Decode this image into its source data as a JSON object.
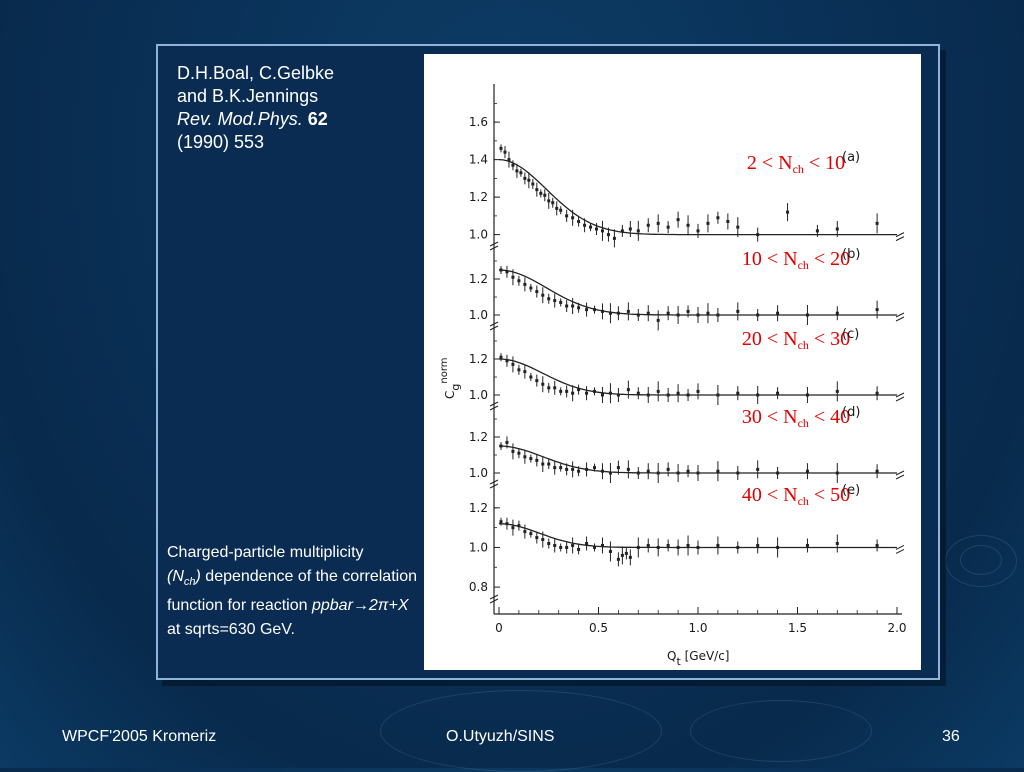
{
  "slide": {
    "reference": {
      "line1": "D.H.Boal, C.Gelbke",
      "line2": "and B.K.Jennings",
      "journal": "Rev. Mod.Phys.",
      "volume": "62",
      "line4": "(1990) 553"
    },
    "caption": {
      "part1": "Charged-particle multiplicity",
      "nch_open": "(N",
      "nch_sub": "ch",
      "nch_close": ")",
      "part2": " dependence of the correlation function for reaction ",
      "reaction": "ppbar→2π+X",
      "part3": " at sqrts=630 GeV."
    },
    "footer": {
      "left": "WPCF'2005 Kromeriz",
      "center": "O.Utyuzh/SINS",
      "right": "36"
    }
  },
  "chart_data": {
    "type": "scatter",
    "xlabel": "Q",
    "xlabel_sub": "t",
    "xlabel_unit": "[GeV/c]",
    "ylabel": "C",
    "ylabel_sub": "g",
    "ylabel_sup": "norm",
    "xlim": [
      0,
      2.0
    ],
    "x_ticks": [
      "0",
      "0.5",
      "1.0",
      "1.5",
      "2.0"
    ],
    "x_tick_values": [
      0,
      0.5,
      1.0,
      1.5,
      2.0
    ],
    "panels": [
      {
        "letter": "(a)",
        "range": {
          "low": "2",
          "high": "10",
          "var": "N",
          "sub": "ch"
        },
        "ylim": [
          0.95,
          1.75
        ],
        "y_ticks": [
          "1.0",
          "1.2",
          "1.4",
          "1.6"
        ],
        "y_tick_values": [
          1.0,
          1.2,
          1.4,
          1.6
        ],
        "fit": {
          "amp": 0.4,
          "width": 0.26
        },
        "points": [
          [
            0.01,
            1.46
          ],
          [
            0.03,
            1.44
          ],
          [
            0.05,
            1.4
          ],
          [
            0.07,
            1.37
          ],
          [
            0.09,
            1.34
          ],
          [
            0.11,
            1.33
          ],
          [
            0.13,
            1.3
          ],
          [
            0.15,
            1.29
          ],
          [
            0.17,
            1.27
          ],
          [
            0.19,
            1.24
          ],
          [
            0.21,
            1.22
          ],
          [
            0.23,
            1.21
          ],
          [
            0.25,
            1.18
          ],
          [
            0.27,
            1.17
          ],
          [
            0.29,
            1.14
          ],
          [
            0.31,
            1.13
          ],
          [
            0.34,
            1.1
          ],
          [
            0.37,
            1.09
          ],
          [
            0.4,
            1.07
          ],
          [
            0.43,
            1.05
          ],
          [
            0.46,
            1.04
          ],
          [
            0.49,
            1.03
          ],
          [
            0.52,
            1.02
          ],
          [
            0.55,
            1.0
          ],
          [
            0.58,
            0.98
          ],
          [
            0.62,
            1.02
          ],
          [
            0.66,
            1.03
          ],
          [
            0.7,
            1.02
          ],
          [
            0.75,
            1.05
          ],
          [
            0.8,
            1.06
          ],
          [
            0.85,
            1.04
          ],
          [
            0.9,
            1.08
          ],
          [
            0.95,
            1.05
          ],
          [
            1.0,
            1.02
          ],
          [
            1.05,
            1.06
          ],
          [
            1.1,
            1.09
          ],
          [
            1.15,
            1.07
          ],
          [
            1.2,
            1.04
          ],
          [
            1.3,
            1.0
          ],
          [
            1.45,
            1.12
          ],
          [
            1.6,
            1.02
          ],
          [
            1.7,
            1.03
          ],
          [
            1.9,
            1.06
          ]
        ]
      },
      {
        "letter": "(b)",
        "range": {
          "low": "10",
          "high": "20",
          "var": "N",
          "sub": "ch"
        },
        "ylim": [
          0.95,
          1.35
        ],
        "y_ticks": [
          "1.0",
          "1.2"
        ],
        "y_tick_values": [
          1.0,
          1.2
        ],
        "fit": {
          "amp": 0.25,
          "width": 0.26
        },
        "points": [
          [
            0.01,
            1.25
          ],
          [
            0.04,
            1.24
          ],
          [
            0.07,
            1.21
          ],
          [
            0.1,
            1.19
          ],
          [
            0.13,
            1.17
          ],
          [
            0.16,
            1.15
          ],
          [
            0.19,
            1.13
          ],
          [
            0.22,
            1.11
          ],
          [
            0.25,
            1.09
          ],
          [
            0.28,
            1.08
          ],
          [
            0.31,
            1.07
          ],
          [
            0.34,
            1.05
          ],
          [
            0.37,
            1.05
          ],
          [
            0.4,
            1.04
          ],
          [
            0.44,
            1.03
          ],
          [
            0.48,
            1.03
          ],
          [
            0.52,
            1.02
          ],
          [
            0.56,
            1.01
          ],
          [
            0.6,
            1.01
          ],
          [
            0.65,
            1.02
          ],
          [
            0.7,
            1.0
          ],
          [
            0.75,
            1.01
          ],
          [
            0.8,
            0.97
          ],
          [
            0.85,
            1.01
          ],
          [
            0.9,
            1.0
          ],
          [
            0.95,
            1.02
          ],
          [
            1.0,
            1.0
          ],
          [
            1.05,
            1.01
          ],
          [
            1.1,
            1.0
          ],
          [
            1.2,
            1.02
          ],
          [
            1.3,
            1.0
          ],
          [
            1.4,
            1.01
          ],
          [
            1.55,
            1.0
          ],
          [
            1.7,
            1.01
          ],
          [
            1.9,
            1.03
          ]
        ]
      },
      {
        "letter": "(c)",
        "range": {
          "low": "20",
          "high": "30",
          "var": "N",
          "sub": "ch"
        },
        "ylim": [
          0.95,
          1.35
        ],
        "y_ticks": [
          "1.0",
          "1.2"
        ],
        "y_tick_values": [
          1.0,
          1.2
        ],
        "fit": {
          "amp": 0.2,
          "width": 0.24
        },
        "points": [
          [
            0.01,
            1.21
          ],
          [
            0.04,
            1.19
          ],
          [
            0.07,
            1.17
          ],
          [
            0.1,
            1.14
          ],
          [
            0.13,
            1.13
          ],
          [
            0.16,
            1.1
          ],
          [
            0.19,
            1.08
          ],
          [
            0.22,
            1.06
          ],
          [
            0.25,
            1.04
          ],
          [
            0.28,
            1.04
          ],
          [
            0.31,
            1.02
          ],
          [
            0.34,
            1.02
          ],
          [
            0.37,
            1.01
          ],
          [
            0.4,
            1.03
          ],
          [
            0.44,
            1.01
          ],
          [
            0.48,
            1.02
          ],
          [
            0.52,
            1.0
          ],
          [
            0.56,
            1.01
          ],
          [
            0.6,
            1.0
          ],
          [
            0.65,
            1.03
          ],
          [
            0.7,
            1.01
          ],
          [
            0.75,
            1.0
          ],
          [
            0.8,
            1.02
          ],
          [
            0.85,
            1.0
          ],
          [
            0.9,
            1.01
          ],
          [
            0.95,
            1.0
          ],
          [
            1.0,
            1.02
          ],
          [
            1.1,
            1.0
          ],
          [
            1.2,
            1.01
          ],
          [
            1.3,
            1.0
          ],
          [
            1.4,
            1.01
          ],
          [
            1.55,
            1.0
          ],
          [
            1.7,
            1.02
          ],
          [
            1.9,
            1.01
          ]
        ]
      },
      {
        "letter": "(d)",
        "range": {
          "low": "30",
          "high": "40",
          "var": "N",
          "sub": "ch"
        },
        "ylim": [
          0.95,
          1.35
        ],
        "y_ticks": [
          "1.0",
          "1.2"
        ],
        "y_tick_values": [
          1.0,
          1.2
        ],
        "fit": {
          "amp": 0.15,
          "width": 0.24
        },
        "points": [
          [
            0.01,
            1.15
          ],
          [
            0.04,
            1.17
          ],
          [
            0.07,
            1.12
          ],
          [
            0.1,
            1.11
          ],
          [
            0.13,
            1.09
          ],
          [
            0.16,
            1.08
          ],
          [
            0.19,
            1.07
          ],
          [
            0.22,
            1.05
          ],
          [
            0.25,
            1.05
          ],
          [
            0.28,
            1.03
          ],
          [
            0.31,
            1.03
          ],
          [
            0.34,
            1.02
          ],
          [
            0.37,
            1.02
          ],
          [
            0.4,
            1.01
          ],
          [
            0.44,
            1.02
          ],
          [
            0.48,
            1.03
          ],
          [
            0.52,
            1.01
          ],
          [
            0.56,
            1.0
          ],
          [
            0.6,
            1.03
          ],
          [
            0.65,
            1.02
          ],
          [
            0.7,
            1.0
          ],
          [
            0.75,
            1.01
          ],
          [
            0.8,
            1.0
          ],
          [
            0.85,
            1.02
          ],
          [
            0.9,
            1.0
          ],
          [
            0.95,
            1.01
          ],
          [
            1.0,
            1.0
          ],
          [
            1.1,
            1.01
          ],
          [
            1.2,
            1.0
          ],
          [
            1.3,
            1.02
          ],
          [
            1.4,
            1.0
          ],
          [
            1.55,
            1.01
          ],
          [
            1.7,
            1.0
          ],
          [
            1.9,
            1.01
          ]
        ]
      },
      {
        "letter": "(e)",
        "range": {
          "low": "40",
          "high": "50",
          "var": "N",
          "sub": "ch"
        },
        "ylim": [
          0.75,
          1.3
        ],
        "y_ticks": [
          "0.8",
          "1.0",
          "1.2"
        ],
        "y_tick_values": [
          0.8,
          1.0,
          1.2
        ],
        "fit": {
          "amp": 0.12,
          "width": 0.22
        },
        "points": [
          [
            0.01,
            1.13
          ],
          [
            0.04,
            1.12
          ],
          [
            0.07,
            1.1
          ],
          [
            0.1,
            1.11
          ],
          [
            0.13,
            1.08
          ],
          [
            0.16,
            1.07
          ],
          [
            0.19,
            1.05
          ],
          [
            0.22,
            1.04
          ],
          [
            0.25,
            1.02
          ],
          [
            0.28,
            1.01
          ],
          [
            0.31,
            1.0
          ],
          [
            0.34,
            1.0
          ],
          [
            0.37,
            1.01
          ],
          [
            0.4,
            0.99
          ],
          [
            0.44,
            1.02
          ],
          [
            0.48,
            1.0
          ],
          [
            0.52,
            1.01
          ],
          [
            0.56,
            0.98
          ],
          [
            0.6,
            0.94
          ],
          [
            0.62,
            0.96
          ],
          [
            0.64,
            0.97
          ],
          [
            0.66,
            0.95
          ],
          [
            0.7,
            1.0
          ],
          [
            0.75,
            1.01
          ],
          [
            0.8,
            1.0
          ],
          [
            0.85,
            1.01
          ],
          [
            0.9,
            1.0
          ],
          [
            0.95,
            1.01
          ],
          [
            1.0,
            1.0
          ],
          [
            1.1,
            1.01
          ],
          [
            1.2,
            1.0
          ],
          [
            1.3,
            1.01
          ],
          [
            1.4,
            1.0
          ],
          [
            1.55,
            1.01
          ],
          [
            1.7,
            1.02
          ],
          [
            1.9,
            1.01
          ]
        ]
      }
    ]
  }
}
